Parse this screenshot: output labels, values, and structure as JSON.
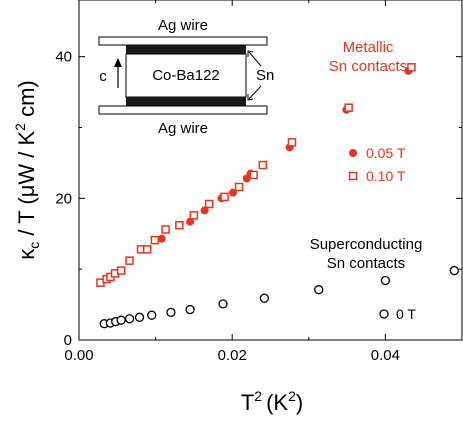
{
  "chart_data": {
    "type": "scatter",
    "xlabel": "T",
    "xlabel_sup": "2",
    "xlabel_unit": "(K",
    "xlabel_unit_sup": "2",
    "xlabel_close": ")",
    "ylabel_kappa": "κ",
    "ylabel_sub": "c",
    "ylabel_mid": " / T (μW / K",
    "ylabel_sup": "2",
    "ylabel_end": " cm)",
    "xlim": [
      0,
      0.05
    ],
    "ylim": [
      0,
      48
    ],
    "x_ticks": [
      0.0,
      0.02,
      0.04
    ],
    "x_tick_labels": [
      "0.00",
      "0.02",
      "0.04"
    ],
    "y_ticks": [
      0,
      20,
      40
    ],
    "y_tick_labels": [
      "0",
      "20",
      "40"
    ],
    "colors": {
      "red": "#e8341c",
      "black": "#000000"
    },
    "series": [
      {
        "name": "0.05 T",
        "marker": "filled-circle",
        "color": "#e8341c",
        "x": [
          0.0108,
          0.0145,
          0.0164,
          0.0186,
          0.0201,
          0.0219,
          0.0224,
          0.0275,
          0.0349,
          0.043
        ],
        "y": [
          14.3,
          16.7,
          18.3,
          20.0,
          20.8,
          22.8,
          23.5,
          27.2,
          32.5,
          38.0
        ]
      },
      {
        "name": "0.10 T",
        "marker": "open-square",
        "color": "#e8341c",
        "x": [
          0.0028,
          0.0036,
          0.0041,
          0.0047,
          0.0055,
          0.0066,
          0.0081,
          0.0089,
          0.0099,
          0.0113,
          0.0131,
          0.015,
          0.017,
          0.019,
          0.0209,
          0.0228,
          0.024,
          0.0278,
          0.0352,
          0.0434
        ],
        "y": [
          8.1,
          8.6,
          8.9,
          9.4,
          9.8,
          11.2,
          12.8,
          12.8,
          14.1,
          15.6,
          16.2,
          17.6,
          19.2,
          20.2,
          21.6,
          23.3,
          24.7,
          27.9,
          32.8,
          38.5
        ]
      },
      {
        "name": "0 T",
        "marker": "open-circle",
        "color": "#000000",
        "x": [
          0.0033,
          0.0041,
          0.0048,
          0.0055,
          0.0066,
          0.0079,
          0.0095,
          0.012,
          0.0145,
          0.0188,
          0.0242,
          0.0313,
          0.04,
          0.049
        ],
        "y": [
          2.3,
          2.4,
          2.6,
          2.8,
          3.0,
          3.2,
          3.5,
          3.9,
          4.3,
          5.1,
          5.9,
          7.1,
          8.4,
          9.8
        ]
      }
    ],
    "annotations": {
      "metallic_line1": "Metallic",
      "metallic_line2": "Sn contacts",
      "superconducting_line1": "Superconducting",
      "superconducting_line2": "Sn contacts"
    },
    "inset": {
      "top_wire": "Ag wire",
      "bottom_wire": "Ag wire",
      "sample": "Co-Ba122",
      "contact": "Sn",
      "axis": "c"
    }
  }
}
